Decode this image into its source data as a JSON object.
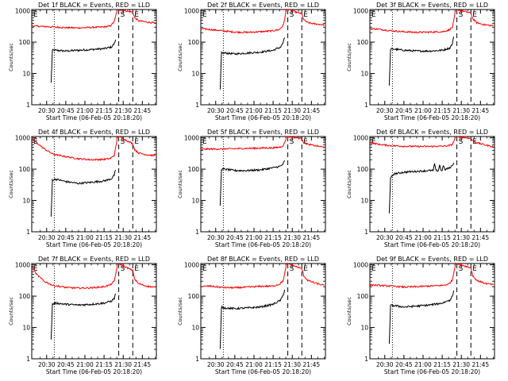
{
  "page_title": "Detector rate plots",
  "colors": {
    "events": "#000000",
    "lld": "#ff0000",
    "axes": "#000000",
    "background": "#ffffff"
  },
  "shared": {
    "ylabel": "Counts/sec",
    "xlabel": "Start Time (06-Feb-05 20:18:20)",
    "x_ticks": [
      "20:30",
      "20:45",
      "21:00",
      "21:15",
      "21:30",
      "21:45"
    ],
    "x_tick_minutes": [
      30,
      45,
      60,
      75,
      90,
      105
    ],
    "y_ticks": [
      "1",
      "10",
      "100",
      "1000"
    ],
    "y_tick_values": [
      1,
      10,
      100,
      1000
    ],
    "xlim_minutes": [
      18.33,
      116
    ],
    "ylim": [
      1,
      1100
    ],
    "markers": {
      "S_label": "S",
      "E_label": "E",
      "dotted_minute": 36,
      "dashed_1_minute": 86.5,
      "dashed_2_minute": 97.5
    }
  },
  "chart_data": [
    {
      "type": "line",
      "title": "Det 1f BLACK = Events, RED = LLD",
      "xlabel": "Start Time (06-Feb-05 20:18:20)",
      "ylabel": "Counts/sec",
      "series": [
        {
          "name": "Events",
          "color": "#000000",
          "x": [
            33.5,
            34.5,
            37,
            45,
            55,
            65,
            75,
            81,
            83,
            84
          ],
          "y": [
            5,
            55,
            55,
            52,
            55,
            58,
            62,
            70,
            90,
            120
          ]
        },
        {
          "name": "LLD",
          "color": "#ff0000",
          "x": [
            18.5,
            25,
            35,
            45,
            55,
            65,
            75,
            80,
            83,
            84.5,
            85.5,
            86.5,
            97.5,
            99,
            102,
            108,
            115
          ],
          "y": [
            330,
            320,
            305,
            290,
            285,
            295,
            305,
            330,
            450,
            800,
            1100,
            1100,
            900,
            600,
            480,
            440,
            410
          ]
        }
      ]
    },
    {
      "type": "line",
      "title": "Det 2f BLACK = Events, RED = LLD",
      "xlabel": "Start Time (06-Feb-05 20:18:20)",
      "ylabel": "Counts/sec",
      "series": [
        {
          "name": "Events",
          "color": "#000000",
          "x": [
            33.5,
            34.5,
            37,
            45,
            55,
            65,
            75,
            81,
            83,
            84
          ],
          "y": [
            3,
            45,
            45,
            42,
            45,
            48,
            55,
            70,
            100,
            140
          ]
        },
        {
          "name": "LLD",
          "color": "#ff0000",
          "x": [
            18.5,
            25,
            35,
            45,
            55,
            65,
            75,
            80,
            83,
            84.5,
            85.5,
            86.5,
            97.5,
            99,
            102,
            108,
            115
          ],
          "y": [
            270,
            255,
            230,
            210,
            205,
            215,
            230,
            255,
            350,
            700,
            1100,
            1100,
            800,
            520,
            420,
            380,
            360
          ]
        }
      ]
    },
    {
      "type": "line",
      "title": "Det 3f BLACK = Events, RED = LLD",
      "xlabel": "Start Time (06-Feb-05 20:18:20)",
      "ylabel": "Counts/sec",
      "series": [
        {
          "name": "Events",
          "color": "#000000",
          "x": [
            33.5,
            34.5,
            37,
            45,
            55,
            65,
            75,
            81,
            83,
            84
          ],
          "y": [
            4,
            60,
            60,
            55,
            52,
            52,
            55,
            65,
            90,
            150
          ]
        },
        {
          "name": "LLD",
          "color": "#ff0000",
          "x": [
            18.5,
            25,
            35,
            45,
            55,
            65,
            75,
            80,
            83,
            84.5,
            85.5,
            86.5,
            97.5,
            99,
            102,
            108,
            115
          ],
          "y": [
            270,
            260,
            230,
            215,
            205,
            210,
            215,
            240,
            300,
            600,
            1100,
            1100,
            850,
            560,
            420,
            360,
            330
          ]
        }
      ]
    },
    {
      "type": "line",
      "title": "Det 4f BLACK = Events, RED = LLD",
      "xlabel": "Start Time (06-Feb-05 20:18:20)",
      "ylabel": "Counts/sec",
      "series": [
        {
          "name": "Events",
          "color": "#000000",
          "x": [
            33.5,
            34.5,
            37,
            45,
            55,
            65,
            75,
            81,
            83,
            84
          ],
          "y": [
            3,
            45,
            48,
            40,
            35,
            38,
            42,
            50,
            65,
            95
          ]
        },
        {
          "name": "LLD",
          "color": "#ff0000",
          "x": [
            18.5,
            22,
            28,
            35,
            45,
            55,
            65,
            75,
            80,
            83,
            84.5,
            85.5,
            86.5,
            97.5,
            99,
            102,
            108,
            115
          ],
          "y": [
            1000,
            700,
            450,
            300,
            250,
            215,
            200,
            205,
            220,
            280,
            600,
            1100,
            1100,
            650,
            420,
            330,
            290,
            270
          ]
        }
      ]
    },
    {
      "type": "line",
      "title": "Det 5f BLACK = Events, RED = LLD",
      "xlabel": "Start Time (06-Feb-05 20:18:20)",
      "ylabel": "Counts/sec",
      "series": [
        {
          "name": "Events",
          "color": "#000000",
          "x": [
            33.5,
            34.5,
            37,
            45,
            55,
            65,
            75,
            81,
            83,
            84
          ],
          "y": [
            7,
            100,
            100,
            90,
            90,
            95,
            110,
            125,
            150,
            190
          ]
        },
        {
          "name": "LLD",
          "color": "#ff0000",
          "x": [
            18.5,
            25,
            35,
            45,
            55,
            65,
            75,
            80,
            83,
            84.5,
            85.5,
            86.5,
            97.5,
            99,
            102,
            108,
            115
          ],
          "y": [
            430,
            440,
            440,
            450,
            460,
            470,
            480,
            500,
            560,
            800,
            1100,
            1100,
            950,
            700,
            620,
            560,
            500
          ]
        }
      ]
    },
    {
      "type": "line",
      "title": "Det 6f BLACK = Events, RED = LLD",
      "xlabel": "Start Time (06-Feb-05 20:18:20)",
      "ylabel": "Counts/sec",
      "series": [
        {
          "name": "Events",
          "color": "#000000",
          "x": [
            33.5,
            34.5,
            37,
            45,
            55,
            65,
            68,
            69,
            70,
            72,
            73,
            74,
            75,
            76,
            77,
            78,
            81,
            83,
            84
          ],
          "y": [
            4,
            50,
            70,
            80,
            85,
            90,
            90,
            150,
            90,
            90,
            140,
            90,
            95,
            130,
            95,
            100,
            110,
            130,
            160
          ]
        },
        {
          "name": "LLD",
          "color": "#ff0000",
          "x": [
            18.5,
            25,
            35,
            45,
            55,
            65,
            75,
            80,
            83,
            84.5,
            85.5,
            86.5,
            97.5,
            99,
            102,
            108,
            115
          ],
          "y": [
            700,
            620,
            560,
            540,
            530,
            530,
            540,
            560,
            620,
            850,
            1100,
            1100,
            950,
            800,
            700,
            600,
            520
          ]
        }
      ]
    },
    {
      "type": "line",
      "title": "Det 7f BLACK = Events, RED = LLD",
      "xlabel": "Start Time (06-Feb-05 20:18:20)",
      "ylabel": "Counts/sec",
      "series": [
        {
          "name": "Events",
          "color": "#000000",
          "x": [
            33.5,
            34.5,
            37,
            45,
            55,
            65,
            75,
            81,
            83,
            84
          ],
          "y": [
            4,
            55,
            60,
            55,
            52,
            55,
            60,
            70,
            85,
            120
          ]
        },
        {
          "name": "LLD",
          "color": "#ff0000",
          "x": [
            18.5,
            22,
            28,
            35,
            45,
            55,
            65,
            75,
            80,
            83,
            84.5,
            85.5,
            86.5,
            97.5,
            99,
            102,
            108,
            115
          ],
          "y": [
            900,
            500,
            300,
            220,
            190,
            180,
            185,
            200,
            230,
            300,
            600,
            1100,
            1100,
            650,
            350,
            250,
            210,
            190
          ]
        }
      ]
    },
    {
      "type": "line",
      "title": "Det 8f BLACK = Events, RED = LLD",
      "xlabel": "Start Time (06-Feb-05 20:18:20)",
      "ylabel": "Counts/sec",
      "series": [
        {
          "name": "Events",
          "color": "#000000",
          "x": [
            33.5,
            34.5,
            37,
            45,
            55,
            65,
            75,
            81,
            83,
            84
          ],
          "y": [
            2,
            45,
            42,
            40,
            42,
            45,
            55,
            75,
            110,
            160
          ]
        },
        {
          "name": "LLD",
          "color": "#ff0000",
          "x": [
            18.5,
            25,
            35,
            45,
            55,
            65,
            75,
            80,
            83,
            84.5,
            85.5,
            86.5,
            97.5,
            99,
            102,
            108,
            115
          ],
          "y": [
            200,
            210,
            190,
            185,
            195,
            205,
            210,
            240,
            320,
            650,
            1100,
            1100,
            750,
            450,
            320,
            260,
            220
          ]
        }
      ]
    },
    {
      "type": "line",
      "title": "Det 9f BLACK = Events, RED = LLD",
      "xlabel": "Start Time (06-Feb-05 20:18:20)",
      "ylabel": "Counts/sec",
      "series": [
        {
          "name": "Events",
          "color": "#000000",
          "x": [
            33.5,
            34.5,
            37,
            45,
            55,
            65,
            75,
            81,
            83,
            84
          ],
          "y": [
            3,
            50,
            50,
            45,
            48,
            52,
            60,
            75,
            100,
            150
          ]
        },
        {
          "name": "LLD",
          "color": "#ff0000",
          "x": [
            18.5,
            25,
            35,
            45,
            55,
            65,
            75,
            80,
            83,
            84.5,
            85.5,
            86.5,
            97.5,
            99,
            102,
            108,
            115
          ],
          "y": [
            230,
            220,
            210,
            195,
            200,
            210,
            220,
            240,
            330,
            700,
            1100,
            1100,
            800,
            450,
            320,
            260,
            230
          ]
        }
      ]
    }
  ]
}
